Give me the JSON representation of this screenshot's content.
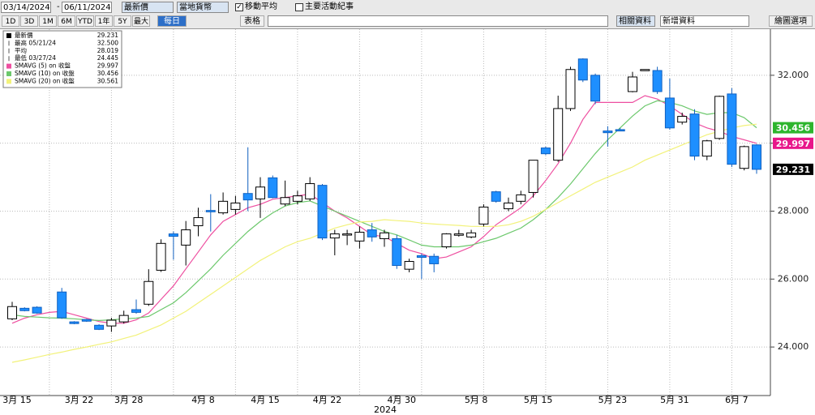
{
  "toolbar": {
    "start_date": "03/14/2024",
    "end_date": "06/11/2024",
    "price_field": "最新價",
    "currency": "當地貨幣",
    "ma_checkbox": "移動平均",
    "events_checkbox": "主要活動紀事",
    "ranges": [
      "1D",
      "3D",
      "1M",
      "6M",
      "YTD",
      "1年",
      "5Y",
      "最大"
    ],
    "frequency": "每日",
    "table": "表格",
    "related": "相關資料",
    "add_data": "新增資料",
    "options": "繪圖選項"
  },
  "chart_data": {
    "type": "candlestick",
    "xlabel": "2024",
    "categories": [
      "3月 15",
      null,
      null,
      null,
      null,
      "3月 22",
      null,
      null,
      null,
      "3月 28",
      null,
      null,
      null,
      null,
      null,
      "4月 8",
      null,
      null,
      null,
      null,
      "4月 15",
      null,
      null,
      null,
      null,
      "4月 22",
      null,
      null,
      null,
      null,
      null,
      "4月 30",
      null,
      null,
      null,
      null,
      null,
      "5月 8",
      null,
      null,
      null,
      null,
      "5月 15",
      null,
      null,
      null,
      null,
      null,
      "5月 23",
      null,
      null,
      null,
      null,
      "5月 31",
      null,
      null,
      null,
      null,
      "6月 7",
      null,
      null
    ],
    "ohlc": {
      "open": [
        24.83,
        25.14,
        25.17,
        null,
        25.62,
        24.74,
        24.81,
        24.64,
        24.62,
        24.74,
        25.1,
        25.26,
        26.26,
        27.33,
        27.0,
        27.57,
        28.02,
        27.95,
        28.05,
        28.52,
        28.36,
        28.98,
        28.21,
        28.29,
        28.36,
        28.76,
        27.21,
        27.31,
        27.12,
        27.45,
        27.19,
        27.19,
        26.29,
        26.69,
        26.67,
        26.95,
        27.29,
        27.24,
        27.62,
        28.57,
        28.07,
        28.29,
        28.55,
        29.86,
        29.5,
        31.02,
        32.48,
        32.0,
        30.36,
        30.4,
        31.52,
        32.14,
        32.14,
        31.33,
        30.62,
        30.86,
        29.62,
        30.14,
        31.45,
        29.26,
        29.95
      ],
      "high": [
        25.33,
        25.17,
        25.2,
        null,
        25.74,
        24.76,
        24.83,
        24.67,
        24.86,
        25.07,
        25.4,
        26.29,
        27.17,
        27.4,
        27.71,
        28.1,
        28.5,
        28.55,
        28.45,
        29.88,
        29.0,
        29.05,
        28.9,
        28.6,
        29.0,
        28.8,
        27.45,
        27.45,
        27.55,
        27.65,
        27.45,
        27.3,
        26.6,
        26.75,
        26.75,
        27.35,
        27.45,
        27.45,
        28.2,
        28.6,
        28.4,
        28.6,
        29.5,
        29.9,
        31.4,
        32.25,
        32.5,
        32.05,
        30.5,
        30.45,
        32.1,
        32.17,
        32.25,
        31.9,
        30.9,
        31.0,
        30.1,
        31.4,
        31.62,
        29.93,
        29.97
      ],
      "low": [
        24.79,
        25.05,
        24.98,
        null,
        24.83,
        24.67,
        24.74,
        24.5,
        24.445,
        24.69,
        24.98,
        25.21,
        26.21,
        26.57,
        26.4,
        27.26,
        27.4,
        27.9,
        27.9,
        28.0,
        27.8,
        28.38,
        28.15,
        28.2,
        28.3,
        27.15,
        26.7,
        27.0,
        26.9,
        27.1,
        26.95,
        26.3,
        26.2,
        26.0,
        26.2,
        26.9,
        27.25,
        27.2,
        27.55,
        28.25,
        28.0,
        28.2,
        28.4,
        29.65,
        29.45,
        30.95,
        31.8,
        31.15,
        29.9,
        30.35,
        31.5,
        32.14,
        31.45,
        30.4,
        30.55,
        29.5,
        29.5,
        30.1,
        29.3,
        29.2,
        29.1
      ],
      "close": [
        25.19,
        25.07,
        25.0,
        null,
        24.86,
        24.69,
        24.76,
        24.52,
        24.79,
        24.93,
        25.02,
        25.93,
        27.05,
        27.26,
        27.45,
        27.81,
        27.98,
        28.29,
        28.24,
        28.33,
        28.71,
        28.4,
        28.4,
        28.45,
        28.81,
        27.21,
        27.33,
        27.33,
        27.38,
        27.24,
        27.36,
        26.4,
        26.52,
        26.64,
        26.45,
        27.33,
        27.33,
        27.36,
        28.12,
        28.29,
        28.24,
        28.48,
        29.5,
        29.69,
        31.02,
        32.17,
        31.86,
        31.24,
        30.31,
        30.36,
        31.95,
        32.17,
        31.52,
        30.45,
        30.79,
        29.62,
        30.07,
        31.38,
        29.38,
        29.9,
        29.231
      ],
      "up_color": "#ffffff",
      "down_color": "#1e8fff"
    },
    "series": [
      {
        "name": "SMAVG (5) on 收盤",
        "legend_value": "29.997",
        "color": "#ee4fa0",
        "values": [
          24.7,
          24.85,
          24.95,
          25.02,
          25.05,
          24.95,
          24.85,
          24.75,
          24.7,
          24.7,
          24.8,
          25.0,
          25.4,
          25.8,
          26.3,
          26.8,
          27.3,
          27.7,
          27.9,
          28.1,
          28.2,
          28.35,
          28.4,
          28.45,
          28.5,
          28.25,
          28.0,
          27.8,
          27.55,
          27.3,
          27.25,
          27.05,
          26.85,
          26.75,
          26.6,
          26.65,
          26.8,
          26.95,
          27.25,
          27.6,
          27.85,
          28.1,
          28.45,
          28.9,
          29.4,
          30.0,
          30.7,
          31.2,
          31.2,
          31.2,
          31.2,
          31.4,
          31.3,
          31.1,
          30.85,
          30.6,
          30.45,
          30.35,
          30.2,
          30.1,
          29.997
        ]
      },
      {
        "name": "SMAVG (10) on 收盤",
        "legend_value": "30.456",
        "color": "#6cc86c",
        "values": [
          24.95,
          24.9,
          24.88,
          24.86,
          24.85,
          24.83,
          24.8,
          24.78,
          24.8,
          24.83,
          24.85,
          24.9,
          25.1,
          25.3,
          25.6,
          25.95,
          26.3,
          26.7,
          27.05,
          27.4,
          27.7,
          27.95,
          28.15,
          28.25,
          28.3,
          28.15,
          28.0,
          27.85,
          27.7,
          27.55,
          27.4,
          27.3,
          27.15,
          27.0,
          26.95,
          26.95,
          26.95,
          27.0,
          27.1,
          27.2,
          27.35,
          27.5,
          27.75,
          28.05,
          28.4,
          28.8,
          29.25,
          29.7,
          30.1,
          30.45,
          30.8,
          31.1,
          31.25,
          31.2,
          31.1,
          30.95,
          30.85,
          30.9,
          30.9,
          30.75,
          30.456
        ]
      },
      {
        "name": "SMAVG (20) on 收盤",
        "legend_value": "30.561",
        "color": "#f2f27a",
        "values": [
          23.55,
          23.62,
          23.7,
          23.78,
          23.85,
          23.93,
          24.0,
          24.08,
          24.15,
          24.25,
          24.35,
          24.5,
          24.65,
          24.85,
          25.05,
          25.3,
          25.55,
          25.8,
          26.05,
          26.3,
          26.55,
          26.75,
          26.95,
          27.1,
          27.2,
          27.35,
          27.5,
          27.6,
          27.68,
          27.7,
          27.75,
          27.72,
          27.7,
          27.65,
          27.62,
          27.6,
          27.58,
          27.55,
          27.55,
          27.55,
          27.6,
          27.7,
          27.85,
          28.05,
          28.25,
          28.45,
          28.65,
          28.85,
          29.0,
          29.15,
          29.3,
          29.5,
          29.65,
          29.8,
          29.95,
          30.1,
          30.25,
          30.35,
          30.45,
          30.52,
          30.561
        ]
      }
    ],
    "legend_extra": [
      {
        "label": "最新價",
        "value": "29.231"
      },
      {
        "label": "最高 05/21/24",
        "value": "32.500"
      },
      {
        "label": "平均",
        "value": "28.019"
      },
      {
        "label": "最低 03/27/24",
        "value": "24.445"
      }
    ],
    "tags": [
      {
        "value": 30.456,
        "label": "30.456",
        "color": "#2db52d"
      },
      {
        "value": 29.997,
        "label": "29.997",
        "color": "#e8178a"
      },
      {
        "value": 29.231,
        "label": "29.231",
        "color": "#000000"
      }
    ],
    "ylim": [
      22.571,
      33.357
    ],
    "yticks": [
      {
        "value": 24,
        "label": "24.000"
      },
      {
        "value": 26,
        "label": "26.000"
      },
      {
        "value": 28,
        "label": "28.000"
      },
      {
        "value": 30,
        "label": "30.000"
      },
      {
        "value": 32,
        "label": "32.000"
      }
    ],
    "grid": true
  }
}
